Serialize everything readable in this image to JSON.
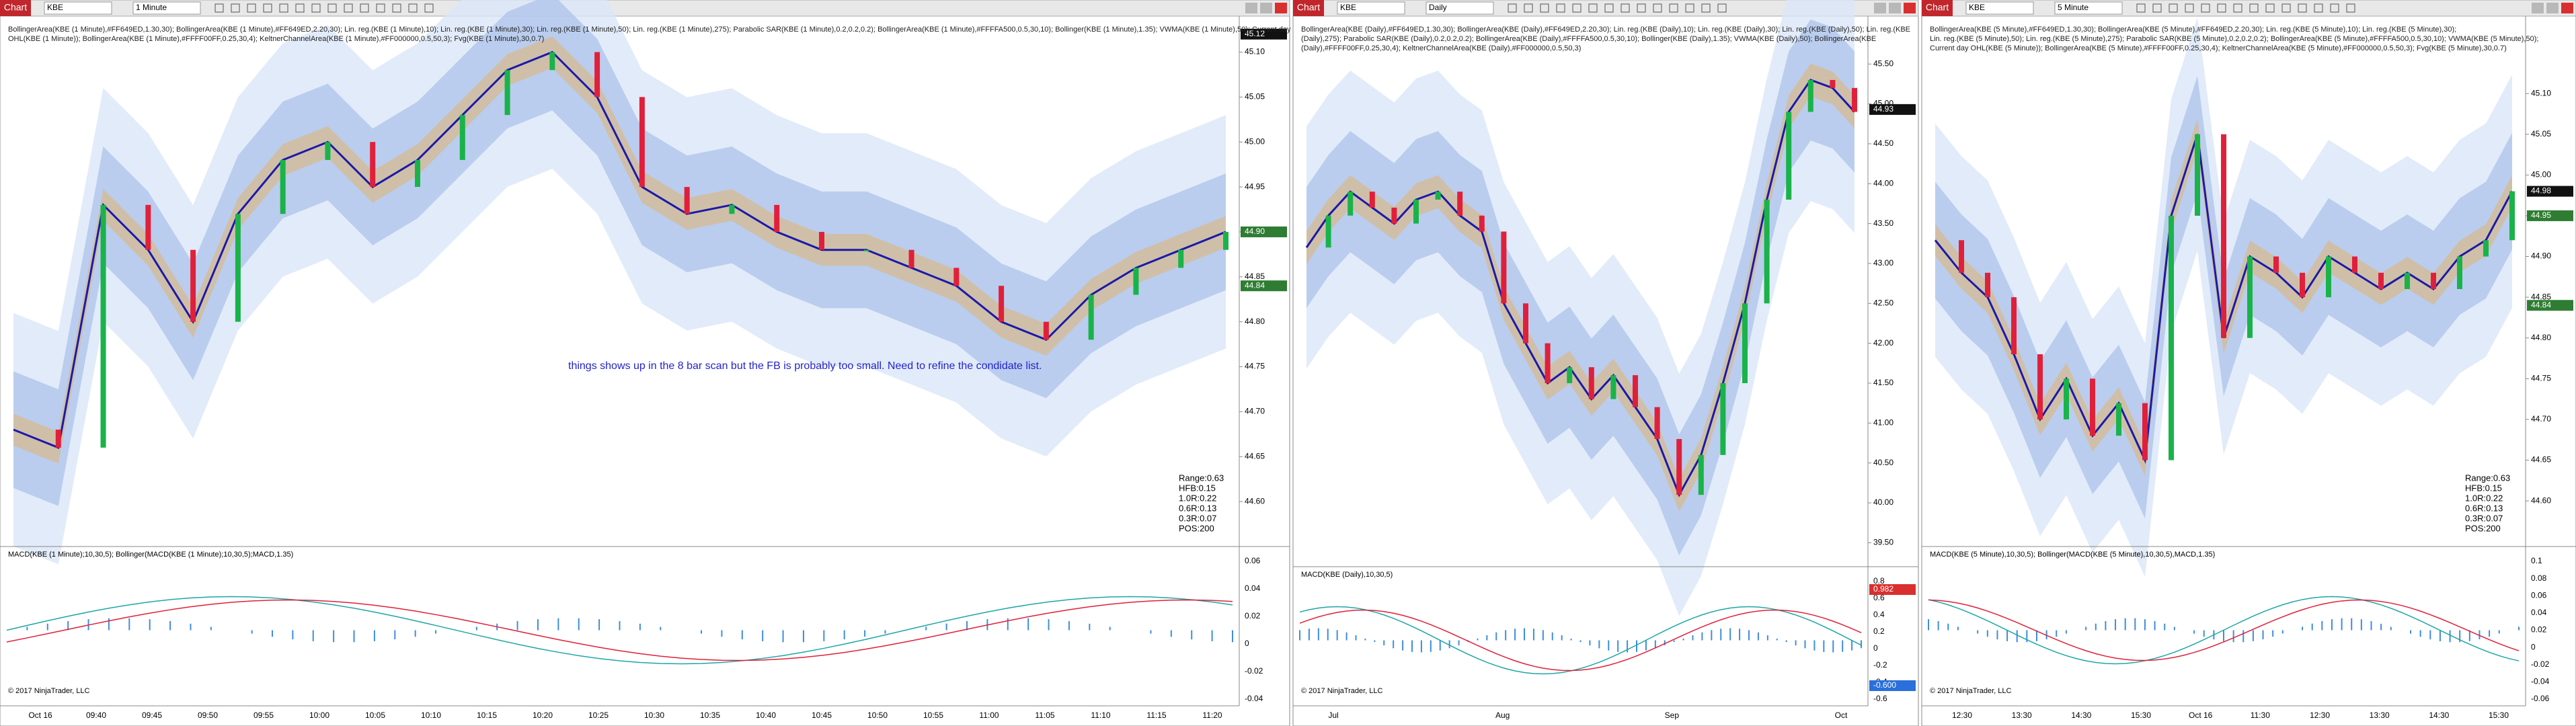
{
  "panes": [
    {
      "button": "Chart",
      "symbol": "KBE",
      "interval": "1 Minute",
      "indicators": [
        "BollingerArea(KBE (1 Minute),#FF649ED,1.30,30); BollingerArea(KBE (1 Minute),#FF649ED,2.20,30); Lin. reg.(KBE (1 Minute),10); Lin. reg.(KBE (1 Minute),30); Lin. reg.(KBE (1 Minute),50); Lin. reg.(KBE (1 Minute),275); Parabolic SAR(KBE (1 Minute),0.2,0.2,0.2); BollingerArea(KBE (1 Minute),#FFFFA500,0.5,30,10); Bollinger(KBE (1 Minute),1.35); VWMA(KBE (1 Minute),50); Current day",
        "OHL(KBE (1 Minute)); BollingerArea(KBE (1 Minute),#FFFF00FF,0.25,30,4); KeltnerChannelArea(KBE (1 Minute),#FF000000,0.5,50,3); Fvg(KBE (1 Minute),30,0.7)"
      ],
      "price": {
        "ylim": [
          44.55,
          45.14
        ],
        "ticks": [
          {
            "value": 45.1,
            "label": "45.10"
          },
          {
            "value": 45.05,
            "label": "45.05"
          },
          {
            "value": 45,
            "label": "45.00"
          },
          {
            "value": 44.95,
            "label": "44.95"
          },
          {
            "value": 44.9,
            "label": "44.90"
          },
          {
            "value": 44.85,
            "label": "44.85"
          },
          {
            "value": 44.8,
            "label": "44.80"
          },
          {
            "value": 44.75,
            "label": "44.75"
          },
          {
            "value": 44.7,
            "label": "44.70"
          },
          {
            "value": 44.65,
            "label": "44.65"
          },
          {
            "value": 44.6,
            "label": "44.60"
          }
        ],
        "tags": [
          {
            "value": 45.12,
            "label": "45.12"
          },
          {
            "value": 44.9,
            "label": "44.90"
          },
          {
            "value": 44.84,
            "label": "44.84"
          }
        ],
        "closes": [
          44.68,
          44.66,
          44.93,
          44.88,
          44.8,
          44.92,
          44.98,
          45.0,
          44.95,
          44.98,
          45.03,
          45.08,
          45.1,
          45.05,
          44.95,
          44.92,
          44.93,
          44.9,
          44.88,
          44.88,
          44.86,
          44.84,
          44.8,
          44.78,
          44.83,
          44.86,
          44.88,
          44.9
        ]
      },
      "note": "things shows up in the 8 bar scan but the FB is probably too small. Need to refine the condidate list.",
      "range_box": [
        "Range:0.63",
        "HFB:0.15",
        "1.0R:0.22",
        "0.6R:0.13",
        "0.3R:0.07",
        "POS:200"
      ],
      "macd_title": "MACD(KBE (1 Minute);10,30,5); Bollinger(MACD(KBE (1 Minute);10,30,5);MACD,1.35)",
      "macd_axis": [
        "0.06",
        "0.04",
        "0.02",
        "0",
        "-0.02",
        "-0.04"
      ],
      "times": [
        "Oct 16",
        "09:40",
        "09:45",
        "09:50",
        "09:55",
        "10:00",
        "10:05",
        "10:10",
        "10:15",
        "10:20",
        "10:25",
        "10:30",
        "10:35",
        "10:40",
        "10:45",
        "10:50",
        "10:55",
        "11:00",
        "11:05",
        "11:10",
        "11:15",
        "11:20"
      ],
      "copyright": "© 2017 NinjaTrader, LLC"
    },
    {
      "button": "Chart",
      "symbol": "KBE",
      "interval": "Daily",
      "indicators": [
        "BollingerArea(KBE (Daily),#FF649ED,1.30,30); BollingerArea(KBE (Daily),#FF649ED,2.20,30); Lin. reg.(KBE (Daily),10); Lin. reg.(KBE (Daily),30); Lin. reg.(KBE (Daily),50); Lin. reg.(KBE",
        "(Daily),275); Parabolic SAR(KBE (Daily),0.2,0.2,0.2); BollingerArea(KBE (Daily),#FFFFA500,0.5,30,10); Bollinger(KBE (Daily),1.35); VWMA(KBE (Daily),50); BollingerArea(KBE",
        "(Daily),#FFFF00FF,0.25,30,4); KeltnerChannelArea(KBE (Daily),#FF000000,0.5,50,3)"
      ],
      "price": {
        "ylim": [
          39.2,
          46.1
        ],
        "ticks": [
          {
            "value": 45.5,
            "label": "45.50"
          },
          {
            "value": 45,
            "label": "45.00"
          },
          {
            "value": 44.5,
            "label": "44.50"
          },
          {
            "value": 44,
            "label": "44.00"
          },
          {
            "value": 43.5,
            "label": "43.50"
          },
          {
            "value": 43,
            "label": "43.00"
          },
          {
            "value": 42.5,
            "label": "42.50"
          },
          {
            "value": 42,
            "label": "42.00"
          },
          {
            "value": 41.5,
            "label": "41.50"
          },
          {
            "value": 41,
            "label": "41.00"
          },
          {
            "value": 40.5,
            "label": "40.50"
          },
          {
            "value": 40,
            "label": "40.00"
          },
          {
            "value": 39.5,
            "label": "39.50"
          }
        ],
        "tags": [
          {
            "value": 44.93,
            "label": "44.93"
          }
        ],
        "closes": [
          43.2,
          43.6,
          43.9,
          43.7,
          43.5,
          43.8,
          43.9,
          43.6,
          43.4,
          42.5,
          42.0,
          41.5,
          41.7,
          41.3,
          41.6,
          41.2,
          40.8,
          40.1,
          40.6,
          41.5,
          42.5,
          43.8,
          44.9,
          45.3,
          45.2,
          44.9
        ]
      },
      "macd_title": "MACD(KBE (Daily),10,30,5)",
      "macd_axis": [
        "0.8",
        "0.6",
        "0.4",
        "0.2",
        "0",
        "-0.2",
        "-0.4",
        "-0.6"
      ],
      "macd_tags": [
        "0.982",
        "-0.600"
      ],
      "times": [
        "Jul",
        "Aug",
        "Sep",
        "Oct"
      ],
      "copyright": "© 2017 NinjaTrader, LLC"
    },
    {
      "button": "Chart",
      "symbol": "KBE",
      "interval": "5 Minute",
      "indicators": [
        "BollingerArea(KBE (5 Minute),#FF649ED,1.30,30); BollingerArea(KBE (5 Minute),#FF649ED,2.20,30); Lin. reg.(KBE (5 Minute),10); Lin. reg.(KBE (5 Minute),30);",
        "Lin. reg.(KBE (5 Minute),50); Lin. reg.(KBE (5 Minute),275); Parabolic SAR(KBE (5 Minute),0.2,0.2,0.2); BollingerArea(KBE (5 Minute),#FFFFA500,0.5,30,10); VWMA(KBE (5 Minute),50);",
        "Current day OHL(KBE (5 Minute)); BollingerArea(KBE (5 Minute),#FFFF00FF,0.25,30,4); KeltnerChannelArea(KBE (5 Minute),#FF000000,0.5,50,3); Fvg(KBE (5 Minute),30,0.7)"
      ],
      "price": {
        "ylim": [
          44.544,
          45.195
        ],
        "ticks": [
          {
            "value": 45.1,
            "label": "45.10"
          },
          {
            "value": 45.05,
            "label": "45.05"
          },
          {
            "value": 45,
            "label": "45.00"
          },
          {
            "value": 44.95,
            "label": "44.95"
          },
          {
            "value": 44.9,
            "label": "44.90"
          },
          {
            "value": 44.85,
            "label": "44.85"
          },
          {
            "value": 44.8,
            "label": "44.80"
          },
          {
            "value": 44.75,
            "label": "44.75"
          },
          {
            "value": 44.7,
            "label": "44.70"
          },
          {
            "value": 44.65,
            "label": "44.65"
          },
          {
            "value": 44.6,
            "label": "44.60"
          }
        ],
        "tags": [
          {
            "value": 44.98,
            "label": "44.98"
          },
          {
            "value": 44.95,
            "label": "44.95"
          },
          {
            "value": 44.84,
            "label": "44.84"
          }
        ],
        "closes": [
          44.92,
          44.88,
          44.85,
          44.78,
          44.7,
          44.75,
          44.68,
          44.72,
          44.65,
          44.95,
          45.05,
          44.8,
          44.9,
          44.88,
          44.85,
          44.9,
          44.88,
          44.86,
          44.88,
          44.86,
          44.9,
          44.92,
          44.98
        ]
      },
      "range_box": [
        "Range:0.63",
        "HFB:0.15",
        "1.0R:0.22",
        "0.6R:0.13",
        "0.3R:0.07",
        "POS:200"
      ],
      "macd_title": "MACD(KBE (5 Minute),10,30,5); Bollinger(MACD(KBE (5 Minute),10,30,5),MACD,1.35)",
      "macd_axis": [
        "0.1",
        "0.08",
        "0.06",
        "0.04",
        "0.02",
        "0",
        "-0.02",
        "-0.04",
        "-0.06"
      ],
      "times": [
        "12:30",
        "13:30",
        "14:30",
        "15:30",
        "Oct 16",
        "11:30",
        "12:30",
        "13:30",
        "14:30",
        "15:30"
      ],
      "copyright": "© 2017 NinjaTrader, LLC"
    }
  ]
}
